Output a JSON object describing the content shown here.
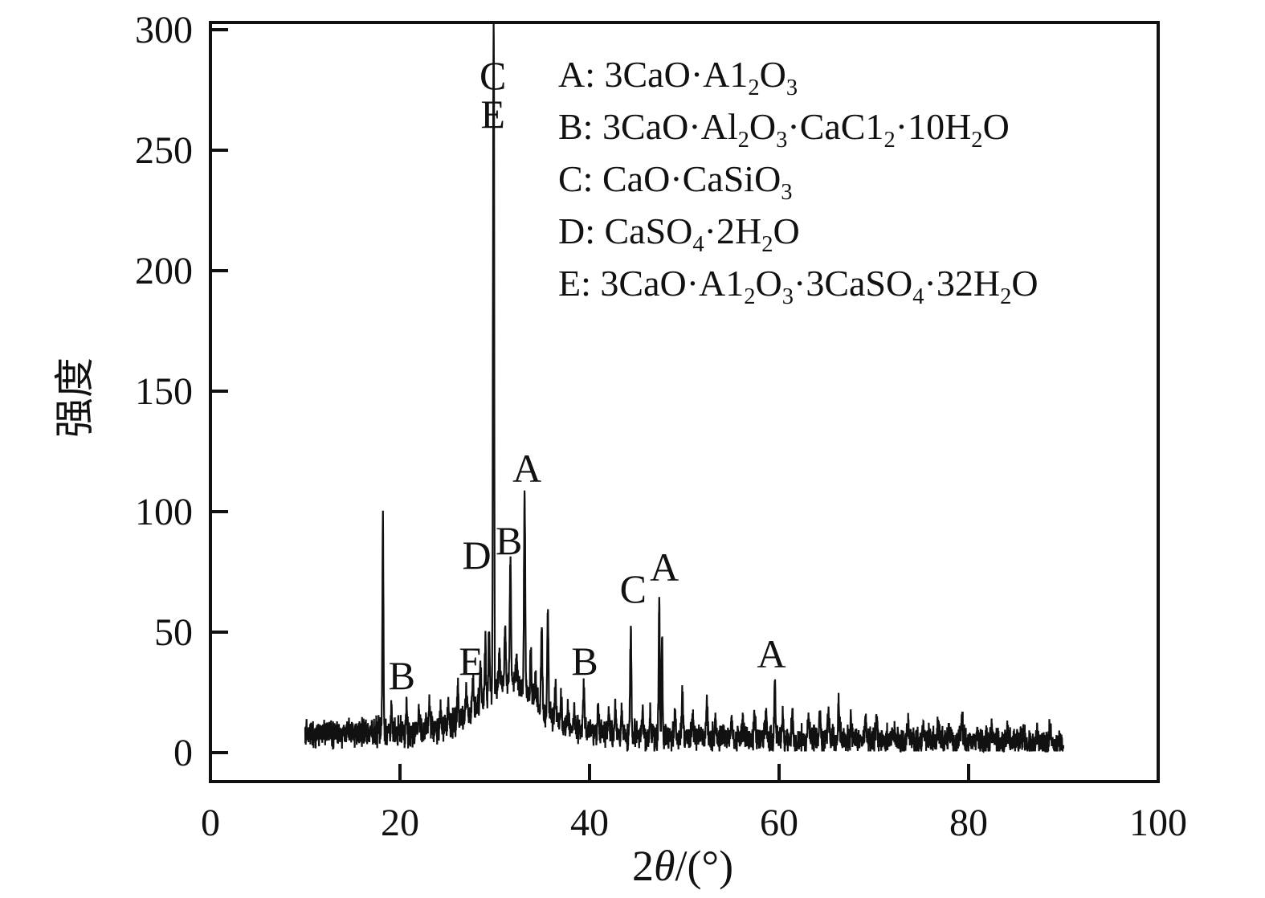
{
  "figure": {
    "background": "#ffffff",
    "ink_color": "#111111",
    "frame": "full box, ticks inward, no gridlines"
  },
  "axes": {
    "x": {
      "title_segments": [
        [
          "2",
          ""
        ],
        [
          "θ",
          "i"
        ],
        [
          "/(°)",
          ""
        ]
      ],
      "title_plain": "2θ/(°)",
      "ticks": [
        0,
        20,
        40,
        60,
        80,
        100
      ],
      "range": [
        0,
        100
      ]
    },
    "y": {
      "title": "强度",
      "ticks": [
        0,
        50,
        100,
        150,
        200,
        250,
        300
      ],
      "range": [
        0,
        300
      ]
    }
  },
  "legend": {
    "items": [
      {
        "key": "A",
        "formula": [
          [
            "3CaO·A1",
            ""
          ],
          [
            "2",
            "s"
          ],
          [
            "O",
            ""
          ],
          [
            "3",
            "s"
          ]
        ],
        "plain": "A: 3CaO·A1₂O₃"
      },
      {
        "key": "B",
        "formula": [
          [
            "3CaO·Al",
            ""
          ],
          [
            "2",
            "s"
          ],
          [
            "O",
            ""
          ],
          [
            "3",
            "s"
          ],
          [
            "·CaC1",
            ""
          ],
          [
            "2",
            "s"
          ],
          [
            "·10H",
            ""
          ],
          [
            "2",
            "s"
          ],
          [
            "O",
            ""
          ]
        ],
        "plain": "B: 3CaO·Al₂O₃·CaC1₂·10H₂O"
      },
      {
        "key": "C",
        "formula": [
          [
            "CaO·CaSiO",
            ""
          ],
          [
            "3",
            "s"
          ]
        ],
        "plain": "C: CaO·CaSiO₃"
      },
      {
        "key": "D",
        "formula": [
          [
            "CaSO",
            ""
          ],
          [
            "4",
            "s"
          ],
          [
            "·2H",
            ""
          ],
          [
            "2",
            "s"
          ],
          [
            "O",
            ""
          ]
        ],
        "plain": "D: CaSO₄·2H₂O"
      },
      {
        "key": "E",
        "formula": [
          [
            "3CaO·A1",
            ""
          ],
          [
            "2",
            "s"
          ],
          [
            "O",
            ""
          ],
          [
            "3",
            "s"
          ],
          [
            "·3CaSO",
            ""
          ],
          [
            "4",
            "s"
          ],
          [
            "·32H",
            ""
          ],
          [
            "2",
            "s"
          ],
          [
            "O",
            ""
          ]
        ],
        "plain": "E: 3CaO·A1₂O₃·3CaSO₄·32H₂O"
      }
    ]
  },
  "chart_data": {
    "type": "line",
    "title": "",
    "xlabel": "2θ/(°)",
    "ylabel": "强度",
    "xlim": [
      0,
      100
    ],
    "ylim": [
      0,
      300
    ],
    "drawn_ylim": [
      -12,
      303
    ],
    "x_data_range": [
      10,
      90
    ],
    "grid": false,
    "legend_position": "upper center inside plot",
    "background_model": {
      "base_at_10deg": 8.5,
      "base_slope_per_deg": -0.055,
      "hump_center": 31.5,
      "hump_components": [
        [
          16,
          3.6
        ],
        [
          6,
          8
        ]
      ]
    },
    "noise": {
      "base_amplitude": 3.2,
      "spike_amplitude": 4.5
    },
    "peaks": [
      [
        18.2,
        90,
        0.08
      ],
      [
        19.1,
        10,
        0.08
      ],
      [
        20.7,
        13,
        0.08
      ],
      [
        22.0,
        8,
        0.1
      ],
      [
        23.1,
        11,
        0.1
      ],
      [
        24.3,
        9,
        0.1
      ],
      [
        25.1,
        9,
        0.1
      ],
      [
        26.1,
        11,
        0.1
      ],
      [
        27.0,
        10,
        0.1
      ],
      [
        27.7,
        16,
        0.1
      ],
      [
        28.5,
        16,
        0.1
      ],
      [
        29.0,
        22,
        0.09
      ],
      [
        29.4,
        28,
        0.09
      ],
      [
        29.85,
        228,
        0.07
      ],
      [
        29.92,
        160,
        0.05
      ],
      [
        30.5,
        16,
        0.09
      ],
      [
        31.1,
        22,
        0.09
      ],
      [
        31.65,
        49,
        0.09
      ],
      [
        32.3,
        12,
        0.09
      ],
      [
        33.15,
        82,
        0.09
      ],
      [
        33.8,
        18,
        0.09
      ],
      [
        34.3,
        10,
        0.09
      ],
      [
        34.95,
        33,
        0.09
      ],
      [
        35.6,
        44,
        0.09
      ],
      [
        36.4,
        16,
        0.09
      ],
      [
        37.0,
        10,
        0.09
      ],
      [
        37.7,
        8,
        0.1
      ],
      [
        38.4,
        6,
        0.1
      ],
      [
        39.4,
        17,
        0.1
      ],
      [
        40.9,
        13,
        0.1
      ],
      [
        42.0,
        9,
        0.1
      ],
      [
        42.7,
        13,
        0.1
      ],
      [
        43.4,
        11,
        0.1
      ],
      [
        44.35,
        45,
        0.09
      ],
      [
        45.6,
        10,
        0.1
      ],
      [
        46.4,
        8,
        0.1
      ],
      [
        47.35,
        57,
        0.08
      ],
      [
        47.65,
        40,
        0.08
      ],
      [
        49.0,
        9,
        0.1
      ],
      [
        49.8,
        15,
        0.1
      ],
      [
        50.9,
        9,
        0.1
      ],
      [
        52.4,
        15,
        0.1
      ],
      [
        53.3,
        8,
        0.1
      ],
      [
        55.0,
        7,
        0.12
      ],
      [
        56.2,
        7,
        0.12
      ],
      [
        57.4,
        9,
        0.12
      ],
      [
        58.6,
        8,
        0.12
      ],
      [
        59.55,
        23,
        0.1
      ],
      [
        60.4,
        8,
        0.12
      ],
      [
        61.4,
        9,
        0.12
      ],
      [
        63.1,
        7,
        0.12
      ],
      [
        64.3,
        8,
        0.12
      ],
      [
        65.2,
        11,
        0.12
      ],
      [
        66.3,
        14,
        0.12
      ],
      [
        67.6,
        7,
        0.12
      ],
      [
        69.1,
        8,
        0.12
      ],
      [
        70.3,
        9,
        0.12
      ],
      [
        72.0,
        6,
        0.12
      ],
      [
        73.6,
        6,
        0.12
      ],
      [
        75.2,
        6,
        0.12
      ],
      [
        76.8,
        6,
        0.12
      ],
      [
        78.0,
        6,
        0.12
      ],
      [
        79.3,
        11,
        0.1
      ],
      [
        80.9,
        5,
        0.12
      ],
      [
        82.4,
        5,
        0.12
      ],
      [
        84.1,
        5,
        0.12
      ],
      [
        85.8,
        5,
        0.12
      ],
      [
        87.2,
        5,
        0.12
      ],
      [
        88.6,
        6,
        0.12
      ]
    ],
    "peak_annotations": [
      {
        "label": "C",
        "x": 29.8,
        "y": 281
      },
      {
        "label": "E",
        "x": 29.8,
        "y": 265
      },
      {
        "label": "A",
        "x": 33.4,
        "y": 118
      },
      {
        "label": "D",
        "x": 28.1,
        "y": 82
      },
      {
        "label": "B",
        "x": 31.5,
        "y": 88
      },
      {
        "label": "E",
        "x": 27.5,
        "y": 38
      },
      {
        "label": "B",
        "x": 20.2,
        "y": 32
      },
      {
        "label": "B",
        "x": 39.5,
        "y": 38
      },
      {
        "label": "C",
        "x": 44.6,
        "y": 68
      },
      {
        "label": "A",
        "x": 47.9,
        "y": 77
      },
      {
        "label": "A",
        "x": 59.2,
        "y": 41
      }
    ]
  }
}
